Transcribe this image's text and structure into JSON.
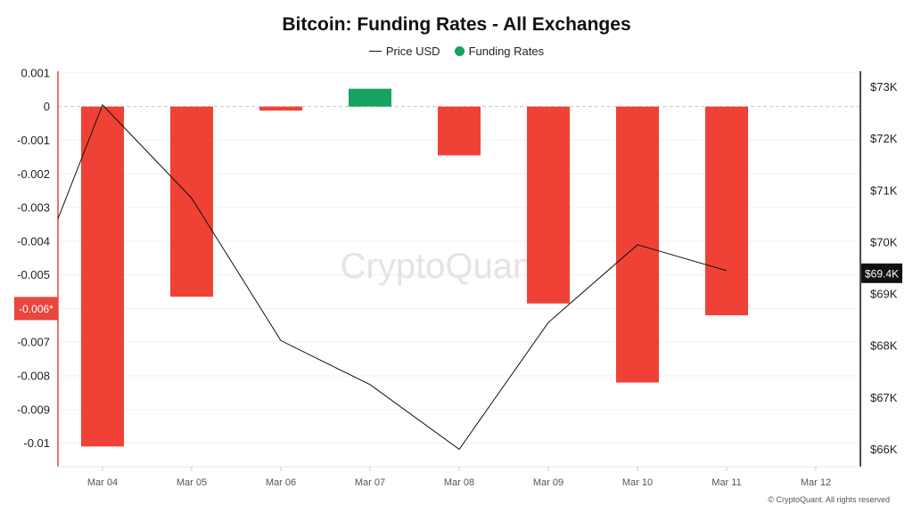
{
  "chart_data": {
    "type": "bar",
    "title": "Bitcoin: Funding Rates - All Exchanges",
    "categories": [
      "Mar 04",
      "Mar 05",
      "Mar 06",
      "Mar 07",
      "Mar 08",
      "Mar 09",
      "Mar 10",
      "Mar 11",
      "Mar 12"
    ],
    "series": [
      {
        "name": "Funding Rates",
        "axis": "left",
        "type": "bar",
        "values": [
          -0.0101,
          -0.00565,
          -0.00012,
          0.00053,
          -0.00145,
          -0.00585,
          -0.0082,
          -0.0062,
          null
        ]
      },
      {
        "name": "Price USD",
        "axis": "right",
        "type": "line",
        "values": [
          72650,
          70850,
          68100,
          67250,
          66000,
          68450,
          69950,
          69450,
          null
        ],
        "start_value": 70450
      }
    ],
    "left_axis": {
      "ylim": [
        -0.0107,
        0.00105
      ],
      "ticks": [
        0.001,
        0,
        -0.001,
        -0.002,
        -0.003,
        -0.004,
        -0.005,
        -0.006,
        -0.007,
        -0.008,
        -0.009,
        -0.01
      ],
      "tick_labels": [
        "0.001",
        "0",
        "-0.001",
        "-0.002",
        "-0.003",
        "-0.004",
        "-0.005",
        "-0.006",
        "-0.007",
        "-0.008",
        "-0.009",
        "-0.01"
      ],
      "marker_value": -0.006,
      "marker_label": "-0.006*",
      "marker_color": "#e8463f"
    },
    "right_axis": {
      "ylim": [
        65665,
        73300
      ],
      "ticks": [
        73000,
        72000,
        71000,
        70000,
        69000,
        68000,
        67000,
        66000
      ],
      "tick_labels": [
        "$73K",
        "$72K",
        "$71K",
        "$70K",
        "$69K",
        "$68K",
        "$67K",
        "$66K"
      ],
      "marker_value": 69400,
      "marker_label": "$69.4K",
      "marker_color": "#111111"
    },
    "colors": {
      "negative": "#f04136",
      "positive": "#15a461",
      "price_line": "#111111",
      "grid": "#f0f0f0",
      "zero_line": "#c8c8c8"
    },
    "grid": true,
    "legend_position": "top-center"
  },
  "legend": {
    "price_label": "Price USD",
    "funding_label": "Funding Rates",
    "funding_color": "#15a461"
  },
  "watermark": "CryptoQuant",
  "copyright": "© CryptoQuant. All rights reserved"
}
